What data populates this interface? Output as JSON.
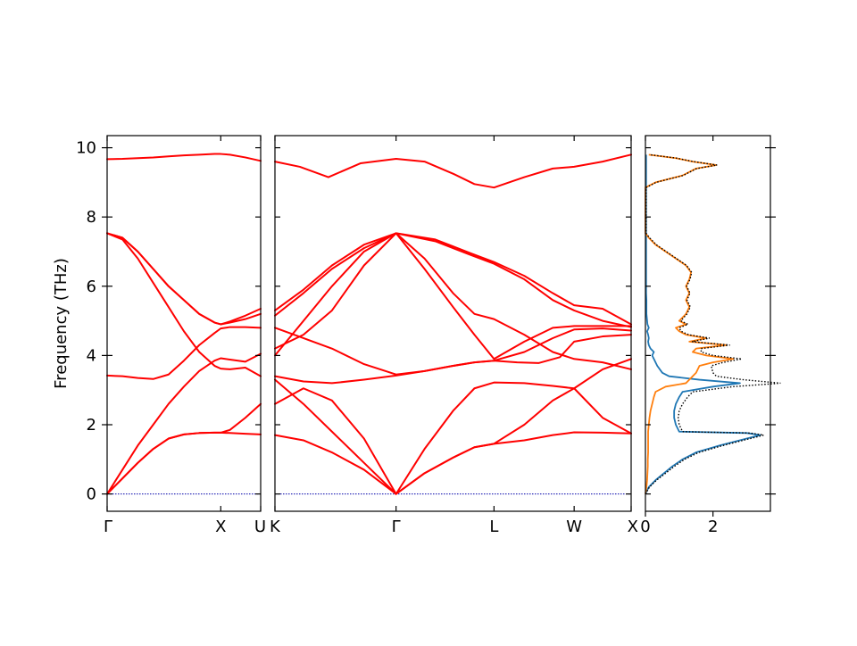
{
  "chart_data": {
    "type": "line",
    "ylabel": "Frequency (THz)",
    "ylim": [
      -0.5,
      10.35
    ],
    "yticks": [
      0,
      2,
      4,
      6,
      8,
      10
    ],
    "colors": {
      "bands": "#ff0000",
      "zero": "#0000aa",
      "dos_a": "#1f77b4",
      "dos_b": "#ff7f0e",
      "dos_total": "#000000"
    },
    "panels": [
      {
        "name": "panel-gamma-x-u",
        "xticks": [
          "Γ",
          "X",
          "U"
        ],
        "xtick_pos": [
          0,
          0.74,
          1.0
        ],
        "series": [
          {
            "x": [
              0,
              0.1,
              0.2,
              0.3,
              0.4,
              0.5,
              0.6,
              0.7,
              0.74,
              0.8,
              0.9,
              1.0
            ],
            "y": [
              9.67,
              9.68,
              9.7,
              9.72,
              9.75,
              9.78,
              9.8,
              9.82,
              9.82,
              9.8,
              9.72,
              9.62
            ]
          },
          {
            "x": [
              0,
              0.1,
              0.2,
              0.3,
              0.4,
              0.5,
              0.6,
              0.7,
              0.74,
              0.8,
              0.9,
              1.0
            ],
            "y": [
              7.53,
              7.4,
              7.0,
              6.5,
              6.0,
              5.6,
              5.2,
              4.95,
              4.9,
              4.95,
              5.05,
              5.2
            ]
          },
          {
            "x": [
              0,
              0.1,
              0.2,
              0.3,
              0.4,
              0.5,
              0.6,
              0.7,
              0.74,
              0.8,
              0.9,
              1.0
            ],
            "y": [
              7.53,
              7.4,
              7.0,
              6.5,
              6.0,
              5.6,
              5.2,
              4.95,
              4.9,
              4.98,
              5.15,
              5.35
            ]
          },
          {
            "x": [
              0,
              0.1,
              0.2,
              0.3,
              0.4,
              0.5,
              0.6,
              0.7,
              0.74,
              0.8,
              0.9,
              1.0
            ],
            "y": [
              7.53,
              7.35,
              6.8,
              6.1,
              5.4,
              4.7,
              4.1,
              3.7,
              3.62,
              3.6,
              3.65,
              3.4
            ]
          },
          {
            "x": [
              0,
              0.1,
              0.2,
              0.3,
              0.4,
              0.5,
              0.6,
              0.7,
              0.74,
              0.8,
              0.9,
              1.0
            ],
            "y": [
              3.42,
              3.4,
              3.35,
              3.32,
              3.45,
              3.85,
              4.3,
              4.65,
              4.78,
              4.82,
              4.82,
              4.8
            ]
          },
          {
            "x": [
              0,
              0.1,
              0.2,
              0.3,
              0.4,
              0.5,
              0.6,
              0.7,
              0.74,
              0.8,
              0.9,
              1.0
            ],
            "y": [
              0.0,
              0.7,
              1.4,
              2.0,
              2.6,
              3.1,
              3.55,
              3.85,
              3.92,
              3.88,
              3.82,
              4.05
            ]
          },
          {
            "x": [
              0,
              0.1,
              0.2,
              0.3,
              0.4,
              0.5,
              0.6,
              0.7,
              0.74,
              0.8,
              0.9,
              1.0
            ],
            "y": [
              0.0,
              0.45,
              0.9,
              1.3,
              1.6,
              1.72,
              1.76,
              1.77,
              1.77,
              1.85,
              2.2,
              2.6
            ]
          },
          {
            "x": [
              0,
              0.1,
              0.2,
              0.3,
              0.4,
              0.5,
              0.6,
              0.7,
              0.74,
              0.8,
              0.9,
              1.0
            ],
            "y": [
              0.0,
              0.45,
              0.9,
              1.3,
              1.6,
              1.72,
              1.76,
              1.77,
              1.77,
              1.76,
              1.74,
              1.72
            ]
          }
        ]
      },
      {
        "name": "panel-k-gamma-l-w-x",
        "xticks": [
          "K",
          "Γ",
          "L",
          "W",
          "X"
        ],
        "xtick_pos": [
          0,
          0.34,
          0.615,
          0.84,
          1.0
        ],
        "series": [
          {
            "x": [
              0,
              0.07,
              0.15,
              0.24,
              0.34,
              0.42,
              0.5,
              0.56,
              0.615,
              0.7,
              0.78,
              0.84,
              0.92,
              1.0
            ],
            "y": [
              9.6,
              9.45,
              9.15,
              9.55,
              9.68,
              9.6,
              9.25,
              8.95,
              8.85,
              9.15,
              9.4,
              9.45,
              9.6,
              9.8
            ]
          },
          {
            "x": [
              0,
              0.08,
              0.16,
              0.25,
              0.34,
              0.45,
              0.55,
              0.615,
              0.7,
              0.78,
              0.84,
              0.92,
              1.0
            ],
            "y": [
              5.3,
              5.9,
              6.6,
              7.2,
              7.53,
              7.35,
              6.95,
              6.7,
              6.3,
              5.8,
              5.45,
              5.35,
              4.9
            ]
          },
          {
            "x": [
              0,
              0.08,
              0.16,
              0.25,
              0.34,
              0.45,
              0.55,
              0.615,
              0.7,
              0.78,
              0.84,
              0.92,
              1.0
            ],
            "y": [
              5.15,
              5.8,
              6.5,
              7.1,
              7.53,
              7.3,
              6.9,
              6.65,
              6.2,
              5.6,
              5.3,
              5.0,
              4.82
            ]
          },
          {
            "x": [
              0,
              0.08,
              0.16,
              0.25,
              0.34,
              0.42,
              0.5,
              0.56,
              0.615,
              0.7,
              0.78,
              0.84,
              0.92,
              1.0
            ],
            "y": [
              4.0,
              5.0,
              6.0,
              7.0,
              7.53,
              6.8,
              5.8,
              5.2,
              5.05,
              4.6,
              4.1,
              3.9,
              3.8,
              3.6
            ]
          },
          {
            "x": [
              0,
              0.08,
              0.16,
              0.25,
              0.34,
              0.42,
              0.5,
              0.56,
              0.615,
              0.7,
              0.78,
              0.84,
              0.92,
              1.0
            ],
            "y": [
              4.2,
              4.6,
              5.3,
              6.6,
              7.53,
              6.5,
              5.4,
              4.6,
              3.9,
              4.4,
              4.8,
              4.85,
              4.85,
              4.85
            ]
          },
          {
            "x": [
              0,
              0.08,
              0.16,
              0.25,
              0.34,
              0.42,
              0.5,
              0.56,
              0.615,
              0.7,
              0.78,
              0.84,
              0.92,
              1.0
            ],
            "y": [
              4.8,
              4.5,
              4.2,
              3.75,
              3.45,
              3.55,
              3.7,
              3.8,
              3.85,
              4.1,
              4.5,
              4.75,
              4.78,
              4.72
            ]
          },
          {
            "x": [
              0,
              0.08,
              0.16,
              0.25,
              0.34,
              0.42,
              0.5,
              0.56,
              0.615,
              0.68,
              0.74,
              0.8,
              0.84,
              0.92,
              1.0
            ],
            "y": [
              3.4,
              3.25,
              3.2,
              3.3,
              3.42,
              3.55,
              3.7,
              3.8,
              3.85,
              3.8,
              3.78,
              3.95,
              4.4,
              4.55,
              4.6
            ]
          },
          {
            "x": [
              0,
              0.08,
              0.16,
              0.25,
              0.34
            ],
            "y": [
              2.6,
              3.05,
              2.7,
              1.6,
              0.0
            ]
          },
          {
            "x": [
              0,
              0.08,
              0.16,
              0.25,
              0.34
            ],
            "y": [
              3.3,
              2.6,
              1.8,
              0.9,
              0.0
            ]
          },
          {
            "x": [
              0,
              0.08,
              0.16,
              0.25,
              0.34
            ],
            "y": [
              1.7,
              1.55,
              1.2,
              0.7,
              0.0
            ]
          },
          {
            "x": [
              0.34,
              0.42,
              0.5,
              0.56,
              0.615,
              0.7,
              0.78,
              0.84,
              0.92,
              1.0
            ],
            "y": [
              0.0,
              1.3,
              2.4,
              3.05,
              3.22,
              3.2,
              3.12,
              3.05,
              3.6,
              3.9
            ]
          },
          {
            "x": [
              0.34,
              0.42,
              0.5,
              0.56,
              0.615,
              0.7,
              0.78,
              0.84,
              0.92,
              1.0
            ],
            "y": [
              0.0,
              0.6,
              1.05,
              1.35,
              1.45,
              2.0,
              2.7,
              3.05,
              2.2,
              1.75
            ]
          },
          {
            "x": [
              0.34,
              0.42,
              0.5,
              0.56,
              0.615,
              0.7,
              0.78,
              0.84,
              0.92,
              1.0
            ],
            "y": [
              0.0,
              0.6,
              1.05,
              1.35,
              1.45,
              1.55,
              1.7,
              1.78,
              1.77,
              1.75
            ]
          }
        ]
      }
    ],
    "dos": {
      "xlim": [
        0,
        3.7
      ],
      "xticks": [
        0,
        2
      ],
      "y": [
        0.0,
        0.2,
        0.4,
        0.6,
        0.8,
        1.0,
        1.2,
        1.4,
        1.5,
        1.6,
        1.7,
        1.76,
        1.8,
        2.0,
        2.2,
        2.4,
        2.6,
        2.8,
        2.95,
        3.1,
        3.2,
        3.3,
        3.4,
        3.5,
        3.7,
        3.8,
        3.9,
        4.0,
        4.1,
        4.2,
        4.3,
        4.4,
        4.5,
        4.6,
        4.7,
        4.8,
        4.9,
        5.0,
        5.2,
        5.4,
        5.6,
        5.8,
        6.0,
        6.2,
        6.4,
        6.6,
        6.8,
        7.0,
        7.2,
        7.4,
        7.53,
        7.7,
        8.0,
        8.5,
        8.85,
        9.0,
        9.2,
        9.4,
        9.5,
        9.6,
        9.7,
        9.8
      ],
      "series": [
        {
          "name": "",
          "color": "#1f77b4",
          "x": [
            0.0,
            0.1,
            0.3,
            0.55,
            0.8,
            1.1,
            1.5,
            2.2,
            2.6,
            3.0,
            3.4,
            3.0,
            1.0,
            0.9,
            0.85,
            0.85,
            0.9,
            1.0,
            1.1,
            2.0,
            2.8,
            1.6,
            0.7,
            0.5,
            0.35,
            0.3,
            0.25,
            0.2,
            0.25,
            0.15,
            0.1,
            0.08,
            0.1,
            0.08,
            0.05,
            0.1,
            0.06,
            0.05,
            0.03,
            0.03,
            0.03,
            0.02,
            0.02,
            0.02,
            0.02,
            0.02,
            0.02,
            0.02,
            0.02,
            0.02,
            0.02,
            0.02,
            0.02,
            0.02,
            0.02,
            0.02,
            0.02,
            0.02,
            0.02,
            0.02,
            0.02,
            0.02
          ]
        },
        {
          "name": "",
          "color": "#ff7f0e",
          "x": [
            0.0,
            0.03,
            0.05,
            0.06,
            0.07,
            0.07,
            0.08,
            0.08,
            0.08,
            0.08,
            0.08,
            0.08,
            0.08,
            0.1,
            0.12,
            0.15,
            0.2,
            0.25,
            0.3,
            0.6,
            1.2,
            1.3,
            1.4,
            1.5,
            1.6,
            2.0,
            2.6,
            1.8,
            1.4,
            1.5,
            2.4,
            1.3,
            1.8,
            1.2,
            1.0,
            0.9,
            1.2,
            1.0,
            1.2,
            1.3,
            1.2,
            1.3,
            1.2,
            1.3,
            1.35,
            1.2,
            0.9,
            0.6,
            0.3,
            0.1,
            0.0,
            0.0,
            0.0,
            0.0,
            0.0,
            0.3,
            1.1,
            1.5,
            2.1,
            1.4,
            0.9,
            0.1
          ]
        },
        {
          "name": "",
          "color": "#000000",
          "total": true,
          "x": [
            0.0,
            0.12,
            0.33,
            0.6,
            0.86,
            1.16,
            1.58,
            2.3,
            2.7,
            3.1,
            3.5,
            3.1,
            1.1,
            1.0,
            0.97,
            1.0,
            1.1,
            1.25,
            1.4,
            2.6,
            4.0,
            2.9,
            2.1,
            2.0,
            1.95,
            2.3,
            2.85,
            2.0,
            1.65,
            1.65,
            2.5,
            1.38,
            1.9,
            1.28,
            1.05,
            1.0,
            1.26,
            1.05,
            1.23,
            1.33,
            1.23,
            1.32,
            1.22,
            1.32,
            1.37,
            1.22,
            0.92,
            0.62,
            0.32,
            0.12,
            0.02,
            0.02,
            0.02,
            0.02,
            0.02,
            0.32,
            1.12,
            1.52,
            2.12,
            1.42,
            0.92,
            0.12
          ]
        }
      ]
    }
  }
}
